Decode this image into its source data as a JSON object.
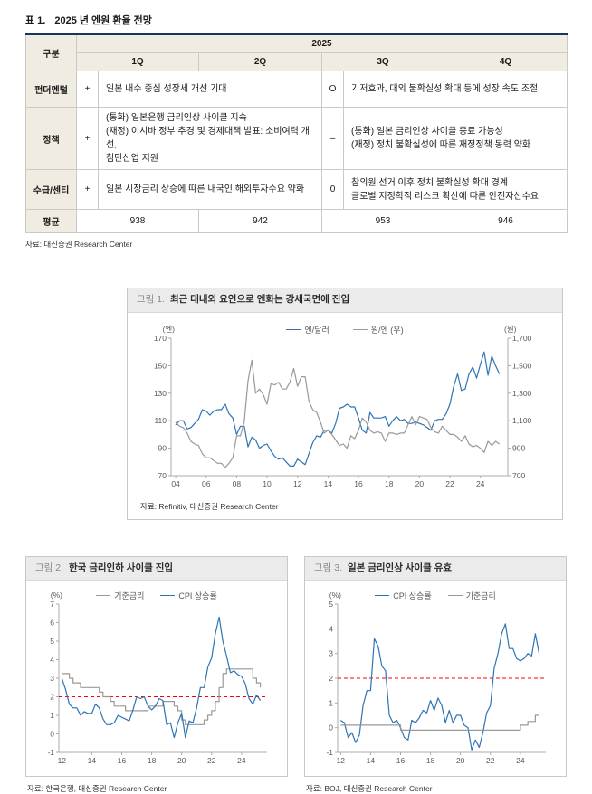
{
  "table1": {
    "no": "표 1.",
    "title": "2025 년 엔원 환율 전망",
    "header": {
      "col_group": "구분",
      "year": "2025",
      "quarters": [
        "1Q",
        "2Q",
        "3Q",
        "4Q"
      ]
    },
    "rows": [
      {
        "label": "펀더멘털",
        "sign_h1": "+",
        "text_h1": "일본 내수 중심 성장세 개선 기대",
        "sign_h2": "O",
        "text_h2": "기저효과, 대외 불확실성 확대 등에 성장 속도 조절"
      },
      {
        "label": "정책",
        "sign_h1": "+",
        "text_h1": "(통화) 일본은행 금리인상 사이클 지속\n(재정) 이시바 정부 추경 및 경제대책 발표: 소비여력 개선,\n첨단산업 지원",
        "sign_h2": "–",
        "text_h2": "(통화) 일본 금리인상 사이클 종료 가능성\n(재정) 정치 불확실성에 따른 재정정책 동력 약화"
      },
      {
        "label": "수급/센티",
        "sign_h1": "+",
        "text_h1": "일본 시장금리 상승에 따른 내국인 해외투자수요 약화",
        "sign_h2": "0",
        "text_h2": "참의원 선거 이후 정치 불확실성 확대 경계\n글로벌 지정학적 리스크 확산에 따른 안전자산수요"
      }
    ],
    "avg_row": {
      "label": "평균",
      "values": [
        "938",
        "942",
        "953",
        "946"
      ]
    },
    "source": "자료: 대신증권 Research Center"
  },
  "figures": [
    {
      "no": "그림 1.",
      "title": "최근 대내외 요인으로 엔화는 강세국면에 진입",
      "source": "자료: Refinitiv, 대신증권 Research Center"
    },
    {
      "no": "그림 2.",
      "title": "한국 금리인하 사이클 진입",
      "source": "자료: 한국은행, 대신증권 Research Center"
    },
    {
      "no": "그림 3.",
      "title": "일본 금리인상 사이클 유효",
      "source": "자료: BOJ, 대신증권 Research Center"
    }
  ],
  "chart_data": [
    {
      "type": "line",
      "title": "최근 대내외 요인으로 엔화는 강세국면에 진입",
      "x_min": 2003.7,
      "x_max": 2025.8,
      "x_ticks": [
        2004,
        2006,
        2008,
        2010,
        2012,
        2014,
        2016,
        2018,
        2020,
        2022,
        2024
      ],
      "x_tick_labels": [
        "04",
        "06",
        "08",
        "10",
        "12",
        "14",
        "16",
        "18",
        "20",
        "22",
        "24"
      ],
      "left_axis": {
        "min": 70,
        "max": 170,
        "ticks": [
          70,
          90,
          110,
          130,
          150,
          170
        ],
        "tick_labels": [
          "70",
          "90",
          "110",
          "130",
          "150",
          "170"
        ],
        "title": "(엔)"
      },
      "right_axis": {
        "min": 700,
        "max": 1700,
        "ticks": [
          700,
          900,
          1100,
          1300,
          1500,
          1700
        ],
        "tick_labels": [
          "700",
          "900",
          "1,100",
          "1,300",
          "1,500",
          "1,700"
        ],
        "title": "(원)"
      },
      "series": [
        {
          "name": "엔/달러",
          "color": "#2e74b5",
          "axis": "left",
          "x0": 2004,
          "dx": 0.25,
          "line": "linear",
          "values": [
            107,
            110,
            110,
            104,
            105,
            108,
            111,
            118,
            117,
            114,
            117,
            118,
            118,
            122,
            115,
            112,
            100,
            106,
            106,
            91,
            98,
            96,
            90,
            92,
            93,
            88,
            84,
            82,
            83,
            80,
            77,
            77,
            82,
            80,
            78,
            86,
            94,
            99,
            98,
            103,
            103,
            101,
            108,
            119,
            120,
            122,
            120,
            120,
            112,
            103,
            101,
            116,
            112,
            112,
            112,
            113,
            106,
            110,
            113,
            110,
            111,
            108,
            108,
            109,
            108,
            107,
            105,
            103,
            110,
            111,
            111,
            115,
            122,
            135,
            144,
            132,
            133,
            144,
            149,
            141,
            151,
            160,
            143,
            157,
            150,
            144
          ]
        },
        {
          "name": "원/엔 (우)",
          "color": "#999999",
          "axis": "right",
          "x0": 2004,
          "dx": 0.25,
          "line": "linear",
          "values": [
            1090,
            1060,
            1050,
            1010,
            950,
            930,
            920,
            860,
            830,
            830,
            810,
            790,
            790,
            760,
            790,
            830,
            990,
            990,
            1090,
            1390,
            1540,
            1300,
            1330,
            1290,
            1220,
            1370,
            1360,
            1380,
            1330,
            1330,
            1380,
            1480,
            1350,
            1420,
            1420,
            1240,
            1180,
            1160,
            1090,
            1010,
            1030,
            1000,
            960,
            920,
            930,
            900,
            990,
            970,
            1030,
            1120,
            1090,
            1030,
            1010,
            1020,
            1010,
            950,
            1010,
            1010,
            1000,
            1010,
            1010,
            1070,
            1130,
            1070,
            1130,
            1120,
            1110,
            1050,
            1020,
            1010,
            1060,
            1030,
            1000,
            1000,
            980,
            950,
            990,
            930,
            910,
            920,
            900,
            870,
            950,
            920,
            950,
            930
          ]
        }
      ]
    },
    {
      "type": "line",
      "title": "한국 금리인하 사이클 진입",
      "x_min": 2011.8,
      "x_max": 2025.7,
      "x_ticks": [
        2012,
        2014,
        2016,
        2018,
        2020,
        2022,
        2024
      ],
      "x_tick_labels": [
        "12",
        "14",
        "16",
        "18",
        "20",
        "22",
        "24"
      ],
      "left_axis": {
        "min": -1,
        "max": 7,
        "ticks": [
          -1,
          0,
          1,
          2,
          3,
          4,
          5,
          6,
          7
        ],
        "tick_labels": [
          "-1",
          "0",
          "1",
          "2",
          "3",
          "4",
          "5",
          "6",
          "7"
        ],
        "title": "(%)"
      },
      "ref_line": {
        "y": 2,
        "color": "#ff0000"
      },
      "series": [
        {
          "name": "기준금리",
          "color": "#999999",
          "axis": "left",
          "x0": 2012,
          "dx": 0.25,
          "line": "step",
          "values": [
            3.25,
            3.25,
            3.0,
            2.75,
            2.75,
            2.5,
            2.5,
            2.5,
            2.5,
            2.5,
            2.25,
            2.0,
            2.0,
            1.75,
            1.5,
            1.5,
            1.5,
            1.25,
            1.25,
            1.25,
            1.25,
            1.25,
            1.25,
            1.5,
            1.5,
            1.5,
            1.5,
            1.75,
            1.75,
            1.75,
            1.5,
            1.25,
            0.75,
            0.5,
            0.5,
            0.5,
            0.5,
            0.5,
            0.75,
            1.0,
            1.25,
            1.75,
            2.5,
            3.25,
            3.5,
            3.5,
            3.5,
            3.5,
            3.5,
            3.5,
            3.5,
            3.0,
            2.75,
            2.5
          ]
        },
        {
          "name": "CPI 상승률",
          "color": "#2e74b5",
          "axis": "left",
          "x0": 2012,
          "dx": 0.25,
          "line": "linear",
          "values": [
            3.0,
            2.4,
            1.6,
            1.4,
            1.4,
            1.0,
            1.2,
            1.1,
            1.1,
            1.6,
            1.4,
            0.8,
            0.5,
            0.5,
            0.6,
            1.0,
            0.9,
            0.8,
            0.7,
            1.3,
            2.0,
            1.9,
            2.0,
            1.5,
            1.3,
            1.5,
            1.9,
            1.8,
            0.5,
            0.6,
            -0.2,
            0.6,
            1.1,
            -0.2,
            0.7,
            0.6,
            1.4,
            2.5,
            2.5,
            3.6,
            4.1,
            5.4,
            6.3,
            5.0,
            4.2,
            3.3,
            3.4,
            3.2,
            3.1,
            2.7,
            1.9,
            1.6,
            2.1,
            1.8
          ]
        }
      ]
    },
    {
      "type": "line",
      "title": "일본 금리인상 사이클 유효",
      "x_min": 2011.8,
      "x_max": 2025.7,
      "x_ticks": [
        2012,
        2014,
        2016,
        2018,
        2020,
        2022,
        2024
      ],
      "x_tick_labels": [
        "12",
        "14",
        "16",
        "18",
        "20",
        "22",
        "24"
      ],
      "left_axis": {
        "min": -1,
        "max": 5,
        "ticks": [
          -1,
          0,
          1,
          2,
          3,
          4,
          5
        ],
        "tick_labels": [
          "-1",
          "0",
          "1",
          "2",
          "3",
          "4",
          "5"
        ],
        "title": "(%)"
      },
      "ref_line": {
        "y": 2,
        "color": "#ff0000"
      },
      "series": [
        {
          "name": "CPI 상승률",
          "color": "#2e74b5",
          "axis": "left",
          "x0": 2012,
          "dx": 0.25,
          "line": "linear",
          "values": [
            0.3,
            0.2,
            -0.4,
            -0.2,
            -0.6,
            -0.3,
            0.9,
            1.5,
            1.5,
            3.6,
            3.3,
            2.5,
            2.3,
            0.5,
            0.2,
            0.3,
            0.0,
            -0.4,
            -0.5,
            0.3,
            0.2,
            0.4,
            0.7,
            0.6,
            1.1,
            0.7,
            1.2,
            0.9,
            0.2,
            0.7,
            0.2,
            0.5,
            0.5,
            0.1,
            0.0,
            -0.9,
            -0.5,
            -0.8,
            -0.2,
            0.6,
            0.9,
            2.4,
            3.0,
            3.8,
            4.2,
            3.2,
            3.2,
            2.8,
            2.7,
            2.8,
            3.0,
            2.9,
            3.8,
            3.0
          ]
        },
        {
          "name": "기준금리",
          "color": "#999999",
          "axis": "left",
          "x0": 2012,
          "dx": 0.25,
          "line": "step",
          "values": [
            0.1,
            0.1,
            0.1,
            0.1,
            0.1,
            0.1,
            0.1,
            0.1,
            0.1,
            0.1,
            0.1,
            0.1,
            0.1,
            0.1,
            0.1,
            0.1,
            -0.1,
            -0.1,
            -0.1,
            -0.1,
            -0.1,
            -0.1,
            -0.1,
            -0.1,
            -0.1,
            -0.1,
            -0.1,
            -0.1,
            -0.1,
            -0.1,
            -0.1,
            -0.1,
            -0.1,
            -0.1,
            -0.1,
            -0.1,
            -0.1,
            -0.1,
            -0.1,
            -0.1,
            -0.1,
            -0.1,
            -0.1,
            -0.1,
            -0.1,
            -0.1,
            -0.1,
            -0.1,
            0.1,
            0.1,
            0.25,
            0.25,
            0.5,
            0.5
          ]
        }
      ]
    }
  ]
}
